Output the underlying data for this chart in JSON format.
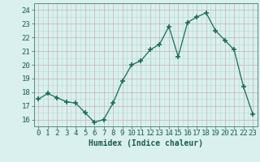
{
  "x": [
    0,
    1,
    2,
    3,
    4,
    5,
    6,
    7,
    8,
    9,
    10,
    11,
    12,
    13,
    14,
    15,
    16,
    17,
    18,
    19,
    20,
    21,
    22,
    23
  ],
  "y": [
    17.5,
    17.9,
    17.6,
    17.3,
    17.2,
    16.5,
    15.8,
    16.0,
    17.2,
    18.8,
    20.0,
    20.3,
    21.1,
    21.5,
    22.8,
    20.6,
    23.1,
    23.5,
    23.8,
    22.5,
    21.8,
    21.1,
    18.4,
    16.4
  ],
  "line_color": "#1a6b5a",
  "marker": "+",
  "marker_size": 5,
  "marker_lw": 1.2,
  "bg_color": "#d9f0ee",
  "grid_main_color": "#b8d8d5",
  "grid_pink_color": "#c8b0b0",
  "xlabel": "Humidex (Indice chaleur)",
  "xlim": [
    -0.5,
    23.5
  ],
  "ylim": [
    15.5,
    24.5
  ],
  "yticks": [
    16,
    17,
    18,
    19,
    20,
    21,
    22,
    23,
    24
  ],
  "xticks": [
    0,
    1,
    2,
    3,
    4,
    5,
    6,
    7,
    8,
    9,
    10,
    11,
    12,
    13,
    14,
    15,
    16,
    17,
    18,
    19,
    20,
    21,
    22,
    23
  ],
  "xlabel_fontsize": 7,
  "tick_fontsize": 6.5,
  "label_color": "#1a5a50",
  "line_width": 0.9
}
